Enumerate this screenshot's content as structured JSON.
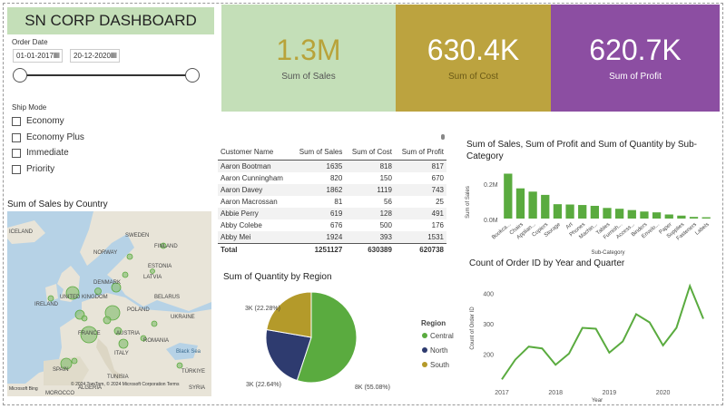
{
  "header": {
    "title": "SN CORP DASHBOARD"
  },
  "filters": {
    "order_date_label": "Order Date",
    "start_date": "01-01-2017",
    "end_date": "20-12-2020",
    "ship_mode_label": "Ship Mode",
    "ship_modes": [
      "Economy",
      "Economy Plus",
      "Immediate",
      "Priority"
    ]
  },
  "kpis": [
    {
      "value": "1.3M",
      "label": "Sum of Sales",
      "bg": "#c4dfb8",
      "fg": "#b8a33a"
    },
    {
      "value": "630.4K",
      "label": "Sum of Cost",
      "bg": "#bca33f",
      "fg": "#ffffff"
    },
    {
      "value": "620.7K",
      "label": "Sum of Profit",
      "bg": "#8c4ea2",
      "fg": "#ffffff"
    }
  ],
  "table": {
    "headers": [
      "Customer Name",
      "Sum of Sales",
      "Sum of Cost",
      "Sum of Profit"
    ],
    "rows": [
      [
        "Aaron Bootman",
        "1635",
        "818",
        "817"
      ],
      [
        "Aaron Cunningham",
        "820",
        "150",
        "670"
      ],
      [
        "Aaron Davey",
        "1862",
        "1119",
        "743"
      ],
      [
        "Aaron Macrossan",
        "81",
        "56",
        "25"
      ],
      [
        "Abbie Perry",
        "619",
        "128",
        "491"
      ],
      [
        "Abby Colebe",
        "676",
        "500",
        "176"
      ],
      [
        "Abby Mei",
        "1924",
        "393",
        "1531"
      ]
    ],
    "total": [
      "Total",
      "1251127",
      "630389",
      "620738"
    ]
  },
  "map": {
    "title": "Sum of Sales by Country",
    "labels": [
      "ICELAND",
      "SWEDEN",
      "FINLAND",
      "NORWAY",
      "ESTONIA",
      "LATVIA",
      "UNITED KINGDOM",
      "IRELAND",
      "DENMARK",
      "BELARUS",
      "POLAND",
      "UKRAINE",
      "FRANCE",
      "AUSTRIA",
      "ROMANIA",
      "ITALY",
      "Black Sea",
      "SPAIN",
      "TÜRKIYE",
      "MOROCCO",
      "ALGERIA",
      "TUNISIA",
      "SYRIA"
    ],
    "copyright": "© 2024 TomTom, © 2024 Microsoft Corporation  Terms",
    "bing": "Microsoft Bing"
  },
  "chart_data": [
    {
      "type": "bar",
      "title": "Sum of Sales, Sum of Profit and Sum of Quantity by Sub-Category",
      "xlabel": "Sub-Category",
      "ylabel": "Sum of Sales",
      "ylim": [
        0,
        300000
      ],
      "yticks": [
        "0.0M",
        "0.2M"
      ],
      "categories": [
        "Bookca...",
        "Chairs",
        "Applian...",
        "Copiers",
        "Storage",
        "Art",
        "Phones",
        "Machin...",
        "Tables",
        "Furnish...",
        "Access...",
        "Binders",
        "Envelo...",
        "Paper",
        "Supplies",
        "Fasteners",
        "Labels"
      ],
      "values": [
        275000,
        185000,
        165000,
        145000,
        88000,
        86000,
        83000,
        78000,
        65000,
        60000,
        52000,
        43000,
        38000,
        25000,
        18000,
        10000,
        8000
      ],
      "color": "#5aab3f"
    },
    {
      "type": "pie",
      "title": "Sum of Quantity by Region",
      "legend_title": "Region",
      "slices": [
        {
          "name": "Central",
          "value": 55.08,
          "label": "8K (55.08%)",
          "color": "#5aab3f"
        },
        {
          "name": "North",
          "value": 22.64,
          "label": "3K (22.64%)",
          "color": "#2e3b6f"
        },
        {
          "name": "South",
          "value": 22.28,
          "label": "3K (22.28%)",
          "color": "#b49a2a"
        }
      ]
    },
    {
      "type": "line",
      "title": "Count of Order ID by Year and Quarter",
      "xlabel": "Year",
      "ylabel": "Count of Order ID",
      "ylim": [
        100,
        450
      ],
      "yticks": [
        200,
        300,
        400
      ],
      "xticks": [
        "2017",
        "2018",
        "2019",
        "2020"
      ],
      "values": [
        120,
        185,
        228,
        222,
        168,
        205,
        290,
        287,
        208,
        245,
        335,
        308,
        232,
        290,
        428,
        320
      ],
      "color": "#5aab3f"
    }
  ]
}
